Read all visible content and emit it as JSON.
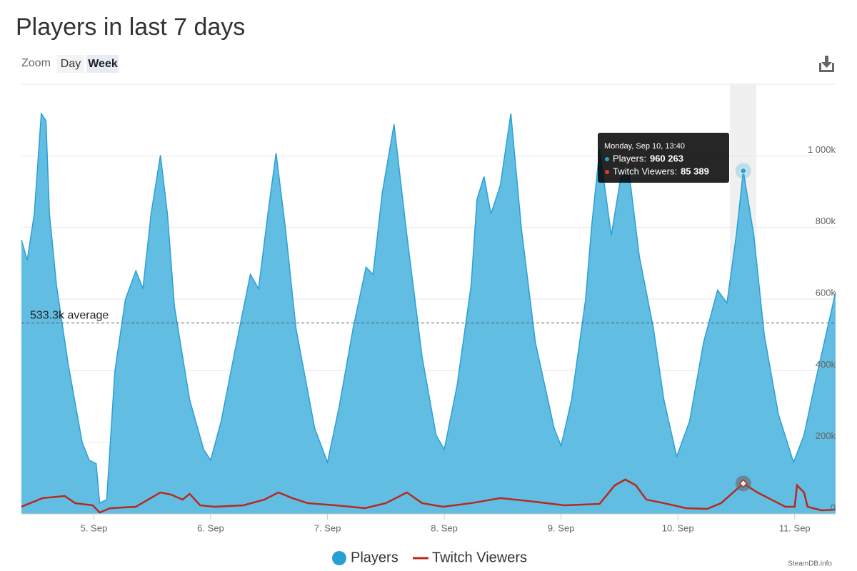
{
  "title": "Players in last 7 days",
  "zoom": {
    "label": "Zoom",
    "buttons": [
      "Day",
      "Week"
    ]
  },
  "credit": "SteamDB.info",
  "chart_data": {
    "type": "area",
    "xlim": [
      4.38,
      11.35
    ],
    "xticks": [
      {
        "value": 5,
        "label": "5. Sep"
      },
      {
        "value": 6,
        "label": "6. Sep"
      },
      {
        "value": 7,
        "label": "7. Sep"
      },
      {
        "value": 8,
        "label": "8. Sep"
      },
      {
        "value": 9,
        "label": "9. Sep"
      },
      {
        "value": 10,
        "label": "10. Sep"
      },
      {
        "value": 11,
        "label": "11. Sep"
      }
    ],
    "ylim": [
      0,
      1200
    ],
    "yticks": [
      0,
      {
        "value": 200,
        "label": "200k"
      },
      {
        "value": 400,
        "label": "400k"
      },
      {
        "value": 600,
        "label": "600k"
      },
      {
        "value": 800,
        "label": "800k"
      },
      {
        "value": 1000,
        "label": "1 000k"
      }
    ],
    "grid": true,
    "average": {
      "value": 533.3,
      "label": "533.3k average"
    },
    "series": [
      {
        "name": "Players",
        "color": "#2a9fd6",
        "fill": "#62bde3",
        "x": [
          4.38,
          4.43,
          4.49,
          4.55,
          4.59,
          4.62,
          4.68,
          4.78,
          4.9,
          4.96,
          5.02,
          5.05,
          5.11,
          5.18,
          5.27,
          5.36,
          5.42,
          5.49,
          5.57,
          5.63,
          5.69,
          5.82,
          5.94,
          6.0,
          6.09,
          6.21,
          6.34,
          6.41,
          6.49,
          6.56,
          6.64,
          6.73,
          6.89,
          7.0,
          7.1,
          7.22,
          7.33,
          7.39,
          7.47,
          7.57,
          7.68,
          7.81,
          7.93,
          8.0,
          8.11,
          8.23,
          8.28,
          8.34,
          8.4,
          8.48,
          8.57,
          8.66,
          8.78,
          8.94,
          9.0,
          9.09,
          9.21,
          9.26,
          9.33,
          9.43,
          9.51,
          9.58,
          9.67,
          9.79,
          9.88,
          9.99,
          10.1,
          10.22,
          10.34,
          10.42,
          10.5,
          10.56,
          10.65,
          10.74,
          10.86,
          10.99,
          11.08,
          11.17,
          11.35
        ],
        "values": [
          765,
          709,
          838,
          1118,
          1098,
          838,
          639,
          419,
          200,
          150,
          140,
          30,
          40,
          399,
          599,
          679,
          629,
          838,
          1002,
          838,
          579,
          319,
          180,
          150,
          259,
          459,
          669,
          629,
          838,
          1008,
          798,
          519,
          240,
          144,
          299,
          519,
          689,
          669,
          898,
          1088,
          778,
          439,
          220,
          180,
          359,
          639,
          878,
          942,
          838,
          918,
          1118,
          798,
          479,
          240,
          190,
          319,
          599,
          798,
          1018,
          778,
          938,
          958,
          719,
          519,
          319,
          160,
          259,
          479,
          625,
          589,
          778,
          958,
          778,
          499,
          279,
          144,
          220,
          359,
          619
        ]
      },
      {
        "name": "Twitch Viewers",
        "color": "#b8291c",
        "x": [
          4.38,
          4.56,
          4.75,
          4.84,
          4.99,
          5.05,
          5.14,
          5.36,
          5.57,
          5.66,
          5.76,
          5.82,
          5.91,
          6.03,
          6.28,
          6.46,
          6.58,
          6.7,
          6.83,
          7.07,
          7.32,
          7.5,
          7.68,
          7.81,
          7.99,
          8.23,
          8.48,
          8.72,
          9.03,
          9.33,
          9.46,
          9.55,
          9.64,
          9.73,
          9.88,
          10.07,
          10.25,
          10.37,
          10.56,
          10.68,
          10.8,
          10.92,
          11.0,
          11.02,
          11.08,
          11.11,
          11.23,
          11.35
        ],
        "values": [
          20,
          44,
          50,
          30,
          24,
          4,
          16,
          20,
          60,
          54,
          40,
          56,
          24,
          20,
          24,
          40,
          60,
          44,
          30,
          24,
          16,
          30,
          60,
          30,
          20,
          30,
          44,
          36,
          24,
          28,
          80,
          96,
          80,
          40,
          30,
          16,
          14,
          30,
          85,
          60,
          40,
          20,
          20,
          80,
          60,
          20,
          10,
          12
        ]
      }
    ],
    "tooltip": {
      "title": "Monday, Sep 10, 13:40",
      "rows": [
        {
          "label": "Players:",
          "value": "960 263"
        },
        {
          "label": "Twitch Viewers:",
          "value": "85 389"
        }
      ]
    }
  }
}
